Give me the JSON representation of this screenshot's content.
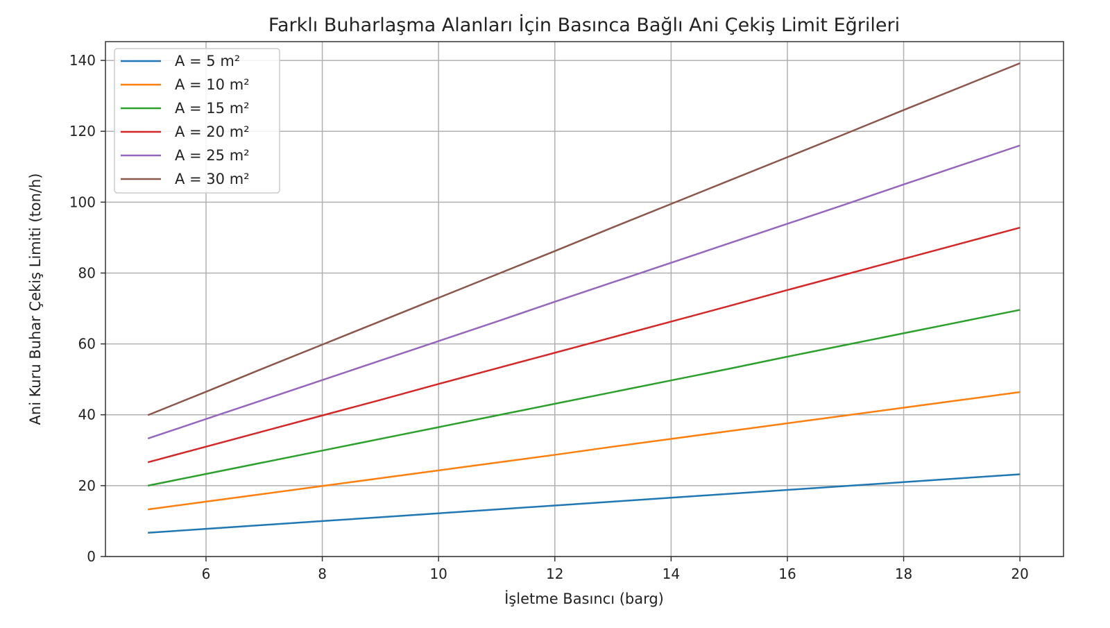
{
  "chart_data": {
    "type": "line",
    "title": "Farklı Buharlaşma Alanları İçin Basınca Bağlı Ani Çekiş Limit Eğrileri",
    "xlabel": "İşletme Basıncı (barg)",
    "ylabel": "Ani Kuru Buhar Çekiş Limiti (ton/h)",
    "xlim": [
      4.27,
      20.75
    ],
    "ylim": [
      0,
      145.3
    ],
    "xticks": [
      6,
      8,
      10,
      12,
      14,
      16,
      18,
      20
    ],
    "yticks": [
      0,
      20,
      40,
      60,
      80,
      100,
      120,
      140
    ],
    "grid": true,
    "legend_position": "top-left",
    "x": [
      5,
      6,
      7,
      8,
      9,
      10,
      11,
      12,
      13,
      14,
      15,
      16,
      17,
      18,
      19,
      20
    ],
    "series": [
      {
        "name": "A = 5 m²",
        "color": "#1f77b4",
        "values": [
          6.7,
          7.8,
          8.9,
          10.0,
          11.1,
          12.2,
          13.3,
          14.4,
          15.5,
          16.6,
          17.7,
          18.8,
          19.9,
          21.0,
          22.1,
          23.2
        ]
      },
      {
        "name": "A = 10 m²",
        "color": "#ff7f0e",
        "values": [
          13.3,
          15.5,
          17.7,
          19.9,
          22.1,
          24.3,
          26.5,
          28.7,
          31.0,
          33.2,
          35.4,
          37.6,
          39.8,
          42.0,
          44.2,
          46.4
        ]
      },
      {
        "name": "A = 15 m²",
        "color": "#2ca02c",
        "values": [
          20.0,
          23.3,
          26.6,
          29.9,
          33.2,
          36.5,
          39.8,
          43.1,
          46.4,
          49.7,
          53.0,
          56.4,
          59.7,
          63.0,
          66.3,
          69.6
        ]
      },
      {
        "name": "A = 20 m²",
        "color": "#d62728",
        "values": [
          26.6,
          31.0,
          35.4,
          39.8,
          44.2,
          48.7,
          53.1,
          57.5,
          61.9,
          66.3,
          70.7,
          75.2,
          79.6,
          84.0,
          88.4,
          92.8
        ]
      },
      {
        "name": "A = 25 m²",
        "color": "#9467bd",
        "values": [
          33.3,
          38.8,
          44.3,
          49.8,
          55.3,
          60.8,
          66.3,
          71.9,
          77.4,
          82.9,
          88.4,
          93.9,
          99.4,
          105.0,
          110.5,
          116.0
        ]
      },
      {
        "name": "A = 30 m²",
        "color": "#8c564b",
        "values": [
          39.9,
          46.5,
          53.2,
          59.8,
          66.4,
          73.0,
          79.6,
          86.2,
          92.9,
          99.5,
          106.1,
          112.7,
          119.3,
          126.0,
          132.6,
          139.2
        ]
      }
    ]
  }
}
